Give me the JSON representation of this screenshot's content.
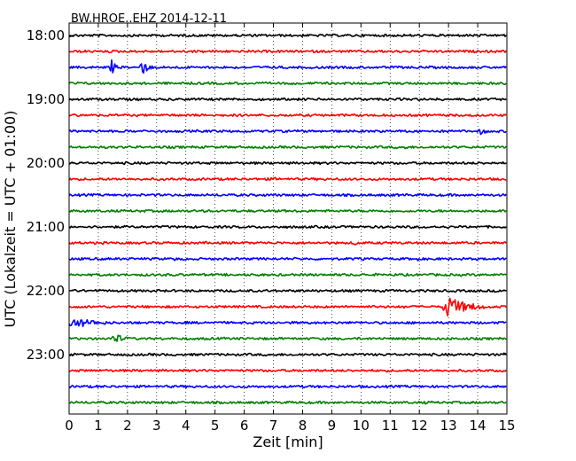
{
  "chart_data": {
    "type": "line",
    "title": "BW.HROE..EHZ 2014-12-11",
    "xlabel": "Zeit  [min]",
    "ylabel": "UTC (Lokalzeit = UTC + 01:00)",
    "xlim": [
      0,
      15
    ],
    "x_ticks": [
      "0",
      "1",
      "2",
      "3",
      "4",
      "5",
      "6",
      "7",
      "8",
      "9",
      "10",
      "11",
      "12",
      "13",
      "14",
      "15"
    ],
    "y_tick_labels": [
      "18:00",
      "19:00",
      "20:00",
      "21:00",
      "22:00",
      "23:00"
    ],
    "grid": "vertical-dotted",
    "trace_colors": [
      "#000000",
      "#ff0000",
      "#0000ff",
      "#008000"
    ],
    "series": [
      {
        "start": "18:00",
        "color": "#000000",
        "events": []
      },
      {
        "start": "18:15",
        "color": "#ff0000",
        "events": []
      },
      {
        "start": "18:30",
        "color": "#0000ff",
        "events": [
          {
            "t": 1.45,
            "amp": 9,
            "dur": 0.35
          },
          {
            "t": 2.45,
            "amp": 11,
            "dur": 0.5
          }
        ]
      },
      {
        "start": "18:45",
        "color": "#008000",
        "events": []
      },
      {
        "start": "19:00",
        "color": "#000000",
        "events": []
      },
      {
        "start": "19:15",
        "color": "#ff0000",
        "events": []
      },
      {
        "start": "19:30",
        "color": "#0000ff",
        "events": [
          {
            "t": 13.0,
            "amp": 3,
            "dur": 0.3
          },
          {
            "t": 14.1,
            "amp": 4,
            "dur": 0.6
          }
        ]
      },
      {
        "start": "19:45",
        "color": "#008000",
        "events": [
          {
            "t": 11.5,
            "amp": 3,
            "dur": 0.3
          }
        ]
      },
      {
        "start": "20:00",
        "color": "#000000",
        "events": []
      },
      {
        "start": "20:15",
        "color": "#ff0000",
        "events": [
          {
            "t": 7.05,
            "amp": 3,
            "dur": 0.1
          },
          {
            "t": 13.5,
            "amp": 3,
            "dur": 0.15
          }
        ]
      },
      {
        "start": "20:30",
        "color": "#0000ff",
        "events": [
          {
            "t": 11.5,
            "amp": 3,
            "dur": 0.3
          }
        ]
      },
      {
        "start": "20:45",
        "color": "#008000",
        "events": [
          {
            "t": 8.6,
            "amp": 2,
            "dur": 0.2
          }
        ]
      },
      {
        "start": "21:00",
        "color": "#000000",
        "events": []
      },
      {
        "start": "21:15",
        "color": "#ff0000",
        "events": [
          {
            "t": 9.8,
            "amp": 4,
            "dur": 0.15
          }
        ]
      },
      {
        "start": "21:30",
        "color": "#0000ff",
        "events": [
          {
            "t": 3.6,
            "amp": 3,
            "dur": 0.2
          },
          {
            "t": 10.0,
            "amp": 3,
            "dur": 0.15
          },
          {
            "t": 11.9,
            "amp": 4,
            "dur": 0.2
          }
        ]
      },
      {
        "start": "21:45",
        "color": "#008000",
        "events": [
          {
            "t": 3.0,
            "amp": 2,
            "dur": 0.2
          }
        ]
      },
      {
        "start": "22:00",
        "color": "#000000",
        "events": []
      },
      {
        "start": "22:15",
        "color": "#ff0000",
        "events": [
          {
            "t": 3.9,
            "amp": 2,
            "dur": 0.2
          },
          {
            "t": 11.45,
            "amp": 3,
            "dur": 0.1
          },
          {
            "t": 12.85,
            "amp": 14,
            "dur": 1.6
          }
        ]
      },
      {
        "start": "22:30",
        "color": "#0000ff",
        "events": [
          {
            "t": 0.05,
            "amp": 7,
            "dur": 1.9
          }
        ]
      },
      {
        "start": "22:45",
        "color": "#008000",
        "events": [
          {
            "t": 1.5,
            "amp": 7,
            "dur": 0.8
          }
        ]
      },
      {
        "start": "23:00",
        "color": "#000000",
        "events": [
          {
            "t": 14.92,
            "amp": 4,
            "dur": 0.08
          }
        ]
      },
      {
        "start": "23:15",
        "color": "#ff0000",
        "events": []
      },
      {
        "start": "23:30",
        "color": "#0000ff",
        "events": []
      },
      {
        "start": "23:45",
        "color": "#008000",
        "events": [
          {
            "t": 1.1,
            "amp": 2,
            "dur": 0.2
          },
          {
            "t": 12.2,
            "amp": 2,
            "dur": 0.2
          }
        ]
      }
    ]
  }
}
